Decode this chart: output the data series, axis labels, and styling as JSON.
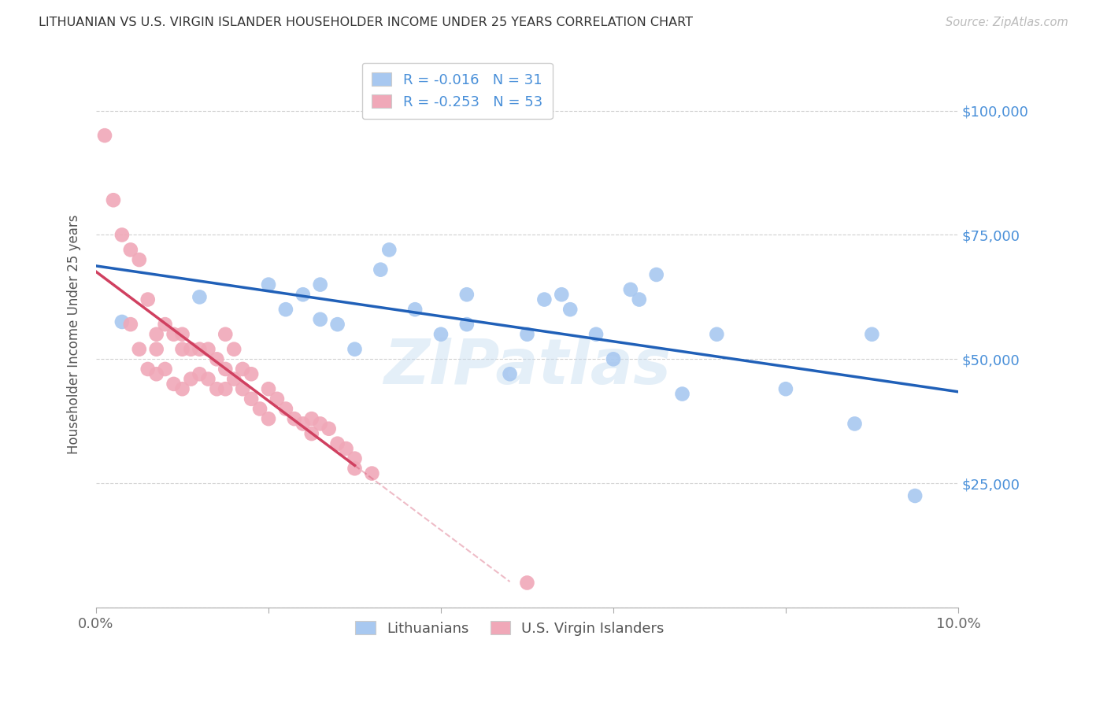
{
  "title": "LITHUANIAN VS U.S. VIRGIN ISLANDER HOUSEHOLDER INCOME UNDER 25 YEARS CORRELATION CHART",
  "source": "Source: ZipAtlas.com",
  "ylabel": "Householder Income Under 25 years",
  "x_min": 0.0,
  "x_max": 0.1,
  "y_min": 0,
  "y_max": 110000,
  "x_ticks": [
    0.0,
    0.02,
    0.04,
    0.06,
    0.08,
    0.1
  ],
  "x_tick_labels": [
    "0.0%",
    "",
    "",
    "",
    "",
    "10.0%"
  ],
  "y_ticks": [
    0,
    25000,
    50000,
    75000,
    100000
  ],
  "y_tick_labels": [
    "",
    "$25,000",
    "$50,000",
    "$75,000",
    "$100,000"
  ],
  "legend_blue_label": "Lithuanians",
  "legend_pink_label": "U.S. Virgin Islanders",
  "r_blue": -0.016,
  "n_blue": 31,
  "r_pink": -0.253,
  "n_pink": 53,
  "blue_color": "#a8c8f0",
  "pink_color": "#f0a8b8",
  "blue_line_color": "#2060b8",
  "pink_line_color": "#d04060",
  "watermark": "ZIPatlas",
  "blue_scatter_x": [
    0.003,
    0.012,
    0.02,
    0.022,
    0.024,
    0.026,
    0.026,
    0.028,
    0.03,
    0.033,
    0.034,
    0.037,
    0.04,
    0.043,
    0.043,
    0.048,
    0.05,
    0.052,
    0.054,
    0.055,
    0.058,
    0.06,
    0.062,
    0.063,
    0.065,
    0.068,
    0.072,
    0.08,
    0.088,
    0.09,
    0.095
  ],
  "blue_scatter_y": [
    57500,
    62500,
    65000,
    60000,
    63000,
    58000,
    65000,
    57000,
    52000,
    68000,
    72000,
    60000,
    55000,
    63000,
    57000,
    47000,
    55000,
    62000,
    63000,
    60000,
    55000,
    50000,
    64000,
    62000,
    67000,
    43000,
    55000,
    44000,
    37000,
    55000,
    22500
  ],
  "pink_scatter_x": [
    0.001,
    0.002,
    0.003,
    0.004,
    0.004,
    0.005,
    0.005,
    0.006,
    0.006,
    0.007,
    0.007,
    0.007,
    0.008,
    0.008,
    0.009,
    0.009,
    0.01,
    0.01,
    0.01,
    0.011,
    0.011,
    0.012,
    0.012,
    0.013,
    0.013,
    0.014,
    0.014,
    0.015,
    0.015,
    0.015,
    0.016,
    0.016,
    0.017,
    0.017,
    0.018,
    0.018,
    0.019,
    0.02,
    0.02,
    0.021,
    0.022,
    0.023,
    0.024,
    0.025,
    0.025,
    0.026,
    0.027,
    0.028,
    0.029,
    0.03,
    0.03,
    0.032,
    0.05
  ],
  "pink_scatter_y": [
    95000,
    82000,
    75000,
    72000,
    57000,
    70000,
    52000,
    62000,
    48000,
    55000,
    52000,
    47000,
    57000,
    48000,
    55000,
    45000,
    55000,
    52000,
    44000,
    52000,
    46000,
    52000,
    47000,
    52000,
    46000,
    50000,
    44000,
    55000,
    48000,
    44000,
    52000,
    46000,
    48000,
    44000,
    47000,
    42000,
    40000,
    44000,
    38000,
    42000,
    40000,
    38000,
    37000,
    38000,
    35000,
    37000,
    36000,
    33000,
    32000,
    30000,
    28000,
    27000,
    5000
  ],
  "pink_line_solid_end": 0.03,
  "pink_line_dash_end": 0.048
}
